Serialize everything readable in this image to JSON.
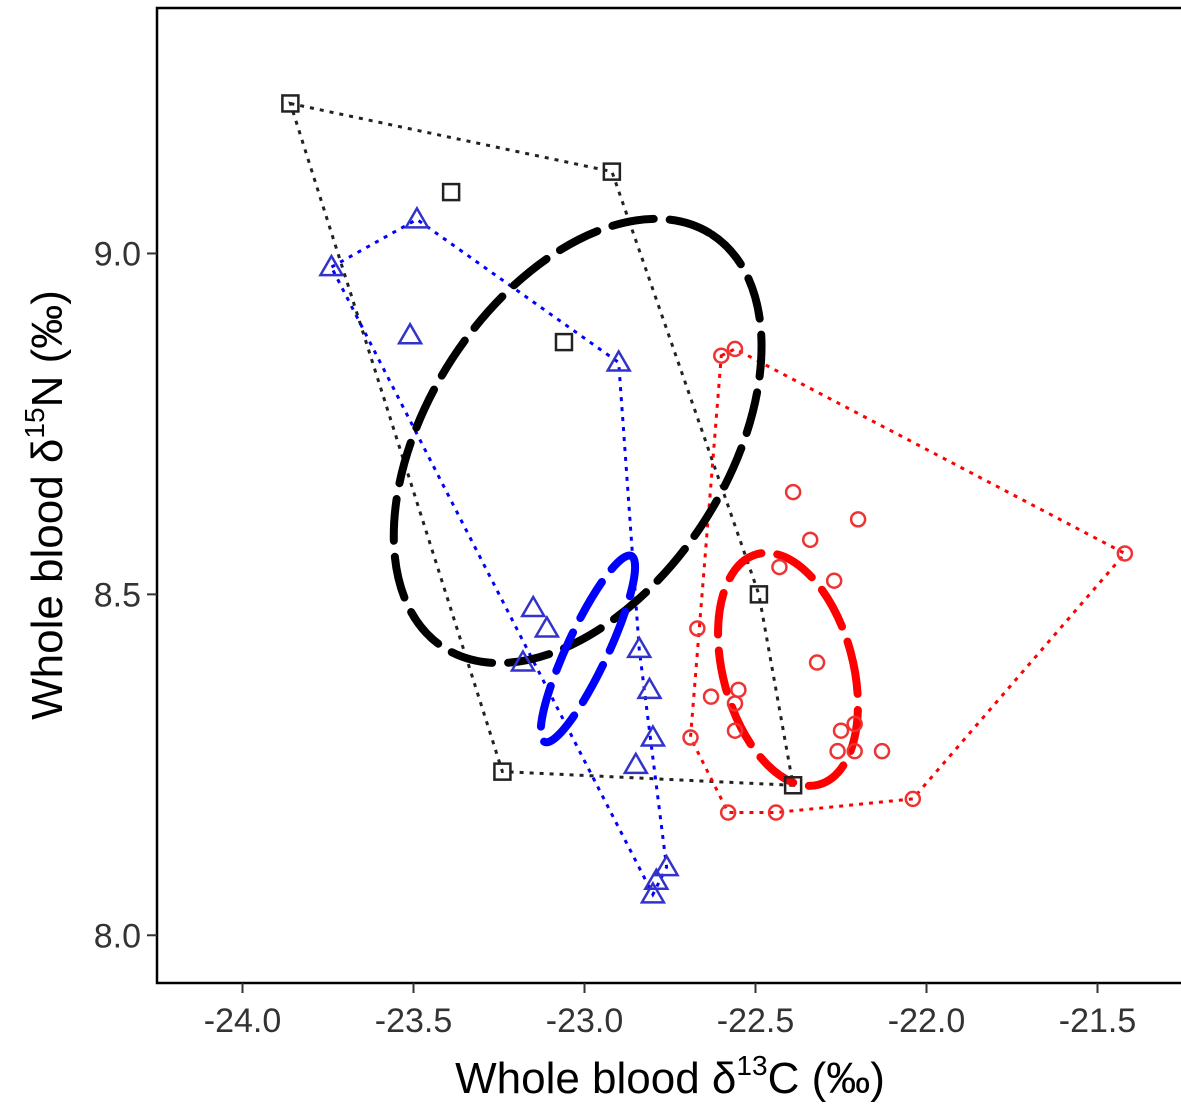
{
  "chart_data": {
    "type": "scatter",
    "xlabel_parts": {
      "prefix": "Whole blood δ",
      "sup": "13",
      "suffix": "C (‰)"
    },
    "ylabel_parts": {
      "prefix": "Whole blood δ",
      "sup": "15",
      "suffix": "N (‰)"
    },
    "xlim": [
      -24.25,
      -21.25
    ],
    "ylim": [
      7.93,
      9.36
    ],
    "xticks": [
      -24.0,
      -23.5,
      -23.0,
      -22.5,
      -22.0,
      -21.5
    ],
    "xtick_labels": [
      "-24.0",
      "-23.5",
      "-23.0",
      "-22.5",
      "-22.0",
      "-21.5"
    ],
    "yticks": [
      8.0,
      8.5,
      9.0
    ],
    "ytick_labels": [
      "8.0",
      "8.5",
      "9.0"
    ],
    "grid": false,
    "series": [
      {
        "marker": "square",
        "color": "#222222",
        "points": [
          [
            -23.86,
            9.22
          ],
          [
            -23.39,
            9.09
          ],
          [
            -22.92,
            9.12
          ],
          [
            -23.06,
            8.87
          ],
          [
            -22.49,
            8.5
          ],
          [
            -23.24,
            8.24
          ],
          [
            -22.39,
            8.22
          ]
        ],
        "hull": [
          [
            -23.86,
            9.22
          ],
          [
            -22.92,
            9.12
          ],
          [
            -22.49,
            8.5
          ],
          [
            -22.39,
            8.22
          ],
          [
            -23.24,
            8.24
          ]
        ],
        "ellipse": {
          "cx": -23.02,
          "cy": 8.725,
          "rx": 0.72,
          "ry": 0.22,
          "angle_deg": -57
        }
      },
      {
        "marker": "triangle",
        "color": "#3333cc",
        "points": [
          [
            -23.74,
            8.98
          ],
          [
            -23.49,
            9.05
          ],
          [
            -23.51,
            8.88
          ],
          [
            -22.9,
            8.84
          ],
          [
            -23.15,
            8.48
          ],
          [
            -23.11,
            8.45
          ],
          [
            -23.18,
            8.4
          ],
          [
            -22.84,
            8.42
          ],
          [
            -22.81,
            8.36
          ],
          [
            -22.8,
            8.29
          ],
          [
            -22.85,
            8.25
          ],
          [
            -22.76,
            8.1
          ],
          [
            -22.79,
            8.08
          ],
          [
            -22.8,
            8.06
          ]
        ],
        "hull": [
          [
            -23.74,
            8.98
          ],
          [
            -23.49,
            9.05
          ],
          [
            -22.9,
            8.84
          ],
          [
            -22.84,
            8.42
          ],
          [
            -22.76,
            8.1
          ],
          [
            -22.8,
            8.06
          ]
        ],
        "ellipse_color": "#0000ff",
        "ellipse": {
          "cx": -22.99,
          "cy": 8.42,
          "rx": 0.3,
          "ry": 0.06,
          "angle_deg": -65
        }
      },
      {
        "marker": "circle",
        "color": "#ee3333",
        "points": [
          [
            -22.6,
            8.85
          ],
          [
            -22.56,
            8.86
          ],
          [
            -22.39,
            8.65
          ],
          [
            -22.2,
            8.61
          ],
          [
            -22.34,
            8.58
          ],
          [
            -22.43,
            8.54
          ],
          [
            -22.27,
            8.52
          ],
          [
            -21.42,
            8.56
          ],
          [
            -22.67,
            8.45
          ],
          [
            -22.32,
            8.4
          ],
          [
            -22.55,
            8.36
          ],
          [
            -22.63,
            8.35
          ],
          [
            -22.56,
            8.34
          ],
          [
            -22.56,
            8.3
          ],
          [
            -22.69,
            8.29
          ],
          [
            -22.25,
            8.3
          ],
          [
            -22.21,
            8.31
          ],
          [
            -22.26,
            8.27
          ],
          [
            -22.21,
            8.27
          ],
          [
            -22.13,
            8.27
          ],
          [
            -22.04,
            8.2
          ],
          [
            -22.58,
            8.18
          ],
          [
            -22.44,
            8.18
          ]
        ],
        "hull": [
          [
            -22.6,
            8.85
          ],
          [
            -22.56,
            8.86
          ],
          [
            -21.42,
            8.56
          ],
          [
            -22.04,
            8.2
          ],
          [
            -22.44,
            8.18
          ],
          [
            -22.58,
            8.18
          ],
          [
            -22.69,
            8.29
          ]
        ],
        "ellipse_color": "#ff0000",
        "ellipse": {
          "cx": -22.405,
          "cy": 8.39,
          "rx": 0.19,
          "ry": 0.175,
          "angle_deg": -15
        }
      }
    ]
  }
}
